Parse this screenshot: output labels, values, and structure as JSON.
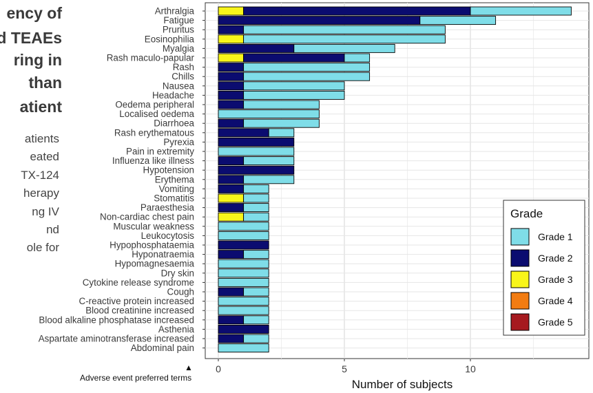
{
  "slide": {
    "title_lines": [
      "ency of",
      "ed TEAEs",
      "ring in",
      "than",
      "atient"
    ],
    "body_lines": [
      "atients",
      "eated",
      "TX-124",
      "herapy",
      "ng IV",
      "nd",
      "ole for"
    ]
  },
  "figure_note": {
    "arrow": "▲",
    "label": "Adverse event preferred terms"
  },
  "chart_data": {
    "type": "bar",
    "orientation": "horizontal",
    "stacked": true,
    "xlabel": "Number of subjects",
    "ylabel": "",
    "xlim": [
      0,
      14.5
    ],
    "xticks": [
      0,
      5,
      10
    ],
    "grid": true,
    "legend": {
      "title": "Grade",
      "position": "right",
      "entries": [
        "Grade 1",
        "Grade 2",
        "Grade 3",
        "Grade 4",
        "Grade 5"
      ]
    },
    "colors": {
      "Grade 1": "#7fdde8",
      "Grade 2": "#0b0c70",
      "Grade 3": "#f8f51a",
      "Grade 4": "#f27c12",
      "Grade 5": "#a61a1f"
    },
    "stack_order": [
      "Grade 3",
      "Grade 2",
      "Grade 1"
    ],
    "categories": [
      "Arthralgia",
      "Fatigue",
      "Pruritus",
      "Eosinophilia",
      "Myalgia",
      "Rash maculo-papular",
      "Rash",
      "Chills",
      "Nausea",
      "Headache",
      "Oedema peripheral",
      "Localised oedema",
      "Diarrhoea",
      "Rash erythematous",
      "Pyrexia",
      "Pain in extremity",
      "Influenza like illness",
      "Hypotension",
      "Erythema",
      "Vomiting",
      "Stomatitis",
      "Paraesthesia",
      "Non-cardiac chest pain",
      "Muscular weakness",
      "Leukocytosis",
      "Hypophosphataemia",
      "Hyponatraemia",
      "Hypomagnesaemia",
      "Dry skin",
      "Cytokine release syndrome",
      "Cough",
      "C-reactive protein increased",
      "Blood creatinine increased",
      "Blood alkaline phosphatase increased",
      "Asthenia",
      "Aspartate aminotransferase increased",
      "Abdominal pain"
    ],
    "series": [
      {
        "name": "Grade 3",
        "values": [
          1,
          0,
          0,
          1,
          0,
          1,
          0,
          0,
          0,
          0,
          0,
          0,
          0,
          0,
          0,
          0,
          0,
          0,
          0,
          0,
          1,
          0,
          1,
          0,
          0,
          0,
          0,
          0,
          0,
          0,
          0,
          0,
          0,
          0,
          0,
          0,
          0
        ]
      },
      {
        "name": "Grade 2",
        "values": [
          9,
          8,
          1,
          0,
          3,
          4,
          1,
          1,
          1,
          1,
          1,
          0,
          1,
          2,
          3,
          0,
          1,
          3,
          1,
          1,
          0,
          1,
          0,
          0,
          0,
          2,
          1,
          0,
          0,
          0,
          1,
          0,
          0,
          1,
          2,
          1,
          0
        ]
      },
      {
        "name": "Grade 1",
        "values": [
          4,
          3,
          8,
          8,
          4,
          1,
          5,
          5,
          4,
          4,
          3,
          4,
          3,
          1,
          0,
          3,
          2,
          0,
          2,
          1,
          1,
          1,
          1,
          2,
          2,
          0,
          1,
          2,
          2,
          2,
          1,
          2,
          2,
          1,
          0,
          1,
          2
        ]
      },
      {
        "name": "Grade 4",
        "values": [
          0,
          0,
          0,
          0,
          0,
          0,
          0,
          0,
          0,
          0,
          0,
          0,
          0,
          0,
          0,
          0,
          0,
          0,
          0,
          0,
          0,
          0,
          0,
          0,
          0,
          0,
          0,
          0,
          0,
          0,
          0,
          0,
          0,
          0,
          0,
          0,
          0
        ]
      },
      {
        "name": "Grade 5",
        "values": [
          0,
          0,
          0,
          0,
          0,
          0,
          0,
          0,
          0,
          0,
          0,
          0,
          0,
          0,
          0,
          0,
          0,
          0,
          0,
          0,
          0,
          0,
          0,
          0,
          0,
          0,
          0,
          0,
          0,
          0,
          0,
          0,
          0,
          0,
          0,
          0,
          0
        ]
      }
    ]
  }
}
